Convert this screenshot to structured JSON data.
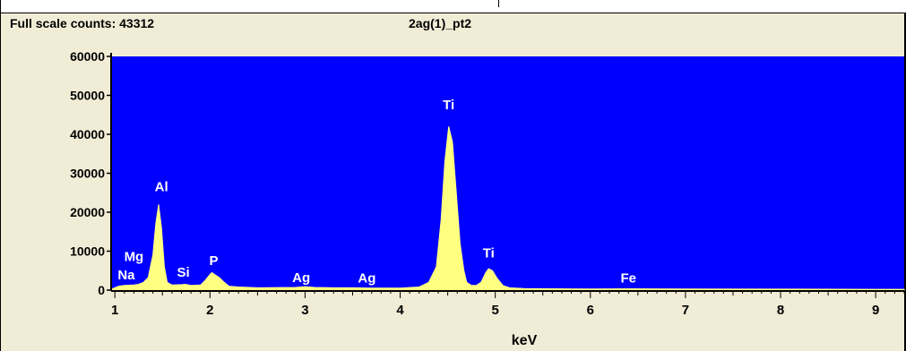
{
  "header": {
    "full_scale": "Full scale counts: 43312",
    "spectrum_name": "2ag(1)_pt2"
  },
  "colors": {
    "plot_bg": "#0000ff",
    "spectrum": "#ffff80",
    "label": "#ffffff",
    "panel": "#f1ecd6"
  },
  "chart_data": {
    "type": "area",
    "title": "2ag(1)_pt2",
    "xlabel": "keV",
    "ylabel": "",
    "xlim": [
      0.97,
      9.3
    ],
    "ylim": [
      0,
      60000
    ],
    "x_ticks": [
      "1",
      "2",
      "3",
      "4",
      "5",
      "6",
      "7",
      "8",
      "9"
    ],
    "y_ticks": [
      "0",
      "10000",
      "20000",
      "30000",
      "40000",
      "50000",
      "60000"
    ],
    "grid": false,
    "series": [
      {
        "x": [
          0.97,
          1.04,
          1.1,
          1.2,
          1.25,
          1.3,
          1.35,
          1.4,
          1.43,
          1.46,
          1.49,
          1.52,
          1.55,
          1.6,
          1.7,
          1.74,
          1.8,
          1.9,
          1.95,
          2.0,
          2.02,
          2.05,
          2.1,
          2.15,
          2.2,
          2.3,
          2.5,
          2.9,
          3.0,
          3.1,
          3.3,
          3.5,
          3.7,
          4.0,
          4.2,
          4.3,
          4.38,
          4.43,
          4.47,
          4.51,
          4.55,
          4.59,
          4.63,
          4.67,
          4.7,
          4.75,
          4.8,
          4.85,
          4.9,
          4.93,
          4.97,
          5.02,
          5.08,
          5.15,
          5.3,
          6.0,
          6.4,
          7.0,
          8.0,
          9.0,
          9.3
        ],
        "y": [
          300,
          1000,
          1200,
          1300,
          1500,
          2000,
          3200,
          9000,
          17000,
          22000,
          16000,
          6000,
          2000,
          1300,
          1400,
          1500,
          1200,
          1300,
          2500,
          4000,
          4500,
          4000,
          3200,
          2000,
          1000,
          800,
          600,
          700,
          900,
          700,
          600,
          600,
          500,
          500,
          800,
          2000,
          6000,
          18000,
          33000,
          42000,
          38000,
          25000,
          12000,
          5000,
          2000,
          1200,
          1200,
          2000,
          4500,
          5500,
          5000,
          3000,
          1200,
          600,
          400,
          300,
          350,
          300,
          250,
          200,
          200
        ]
      }
    ],
    "peak_labels": [
      {
        "text": "Na",
        "x": 1.12,
        "y": 1800
      },
      {
        "text": "Mg",
        "x": 1.2,
        "y": 6500
      },
      {
        "text": "Al",
        "x": 1.49,
        "y": 24500
      },
      {
        "text": "Si",
        "x": 1.72,
        "y": 2500
      },
      {
        "text": "P",
        "x": 2.04,
        "y": 5500
      },
      {
        "text": "Ag",
        "x": 2.96,
        "y": 1200
      },
      {
        "text": "Ag",
        "x": 3.65,
        "y": 1000
      },
      {
        "text": "Ti",
        "x": 4.51,
        "y": 45500
      },
      {
        "text": "Ti",
        "x": 4.93,
        "y": 7500
      },
      {
        "text": "Fe",
        "x": 6.4,
        "y": 1000
      }
    ]
  }
}
